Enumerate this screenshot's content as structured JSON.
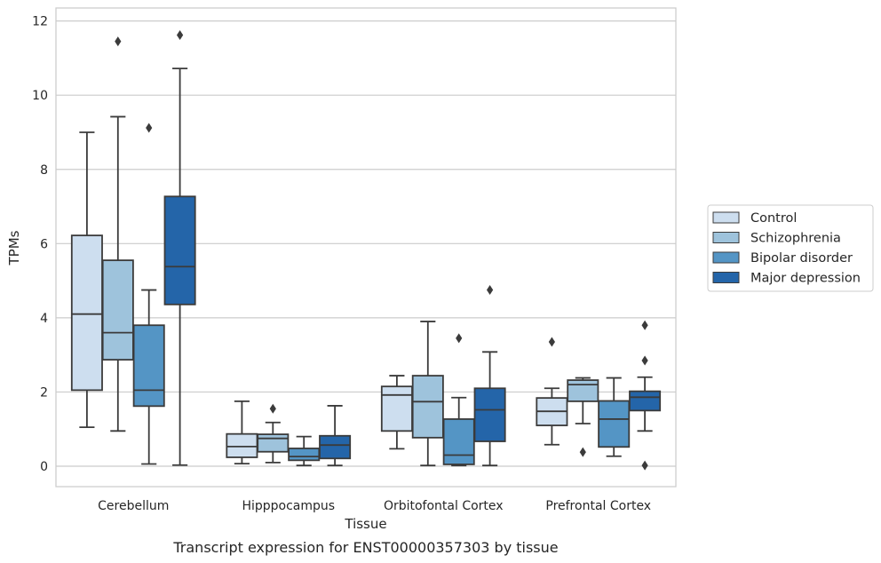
{
  "chart_data": {
    "type": "boxplot",
    "caption": "Transcript expression for ENST00000357303 by tissue",
    "xlabel": "Tissue",
    "ylabel": "TPMs",
    "ylim": [
      -0.55,
      12.35
    ],
    "yticks": [
      0,
      2,
      4,
      6,
      8,
      10,
      12
    ],
    "grid": "horizontal",
    "legend_position": "right",
    "categories": [
      "Cerebellum",
      "Hipppocampus",
      "Orbitofontal Cortex",
      "Prefrontal Cortex"
    ],
    "series": [
      {
        "name": "Control",
        "color": "#cddeef",
        "boxes": [
          {
            "whisker_low": 1.05,
            "q1": 2.05,
            "median": 4.1,
            "q3": 6.22,
            "whisker_high": 9.0,
            "outliers": []
          },
          {
            "whisker_low": 0.07,
            "q1": 0.24,
            "median": 0.53,
            "q3": 0.87,
            "whisker_high": 1.75,
            "outliers": []
          },
          {
            "whisker_low": 0.47,
            "q1": 0.95,
            "median": 1.92,
            "q3": 2.15,
            "whisker_high": 2.44,
            "outliers": []
          },
          {
            "whisker_low": 0.58,
            "q1": 1.1,
            "median": 1.48,
            "q3": 1.84,
            "whisker_high": 2.1,
            "outliers": [
              3.35
            ]
          }
        ]
      },
      {
        "name": "Schizophrenia",
        "color": "#9ec3dc",
        "boxes": [
          {
            "whisker_low": 0.95,
            "q1": 2.87,
            "median": 3.6,
            "q3": 5.55,
            "whisker_high": 9.42,
            "outliers": [
              11.45
            ]
          },
          {
            "whisker_low": 0.1,
            "q1": 0.39,
            "median": 0.75,
            "q3": 0.86,
            "whisker_high": 1.18,
            "outliers": [
              1.55
            ]
          },
          {
            "whisker_low": 0.02,
            "q1": 0.77,
            "median": 1.74,
            "q3": 2.44,
            "whisker_high": 3.9,
            "outliers": []
          },
          {
            "whisker_low": 1.15,
            "q1": 1.75,
            "median": 2.2,
            "q3": 2.32,
            "whisker_high": 2.38,
            "outliers": [
              0.38
            ]
          }
        ]
      },
      {
        "name": "Bipolar disorder",
        "color": "#5495c5",
        "boxes": [
          {
            "whisker_low": 0.06,
            "q1": 1.62,
            "median": 2.05,
            "q3": 3.8,
            "whisker_high": 4.75,
            "outliers": [
              9.12
            ]
          },
          {
            "whisker_low": 0.02,
            "q1": 0.16,
            "median": 0.26,
            "q3": 0.48,
            "whisker_high": 0.8,
            "outliers": []
          },
          {
            "whisker_low": 0.02,
            "q1": 0.05,
            "median": 0.3,
            "q3": 1.27,
            "whisker_high": 1.85,
            "outliers": [
              3.45
            ]
          },
          {
            "whisker_low": 0.27,
            "q1": 0.52,
            "median": 1.27,
            "q3": 1.76,
            "whisker_high": 2.38,
            "outliers": []
          }
        ]
      },
      {
        "name": "Major depression",
        "color": "#2465a9",
        "boxes": [
          {
            "whisker_low": 0.03,
            "q1": 4.36,
            "median": 5.38,
            "q3": 7.27,
            "whisker_high": 10.72,
            "outliers": [
              11.62
            ]
          },
          {
            "whisker_low": 0.02,
            "q1": 0.21,
            "median": 0.57,
            "q3": 0.82,
            "whisker_high": 1.63,
            "outliers": []
          },
          {
            "whisker_low": 0.02,
            "q1": 0.67,
            "median": 1.52,
            "q3": 2.1,
            "whisker_high": 3.08,
            "outliers": [
              4.75
            ]
          },
          {
            "whisker_low": 0.95,
            "q1": 1.5,
            "median": 1.86,
            "q3": 2.02,
            "whisker_high": 2.4,
            "outliers": [
              0.02,
              2.85,
              3.8
            ]
          }
        ]
      }
    ]
  }
}
